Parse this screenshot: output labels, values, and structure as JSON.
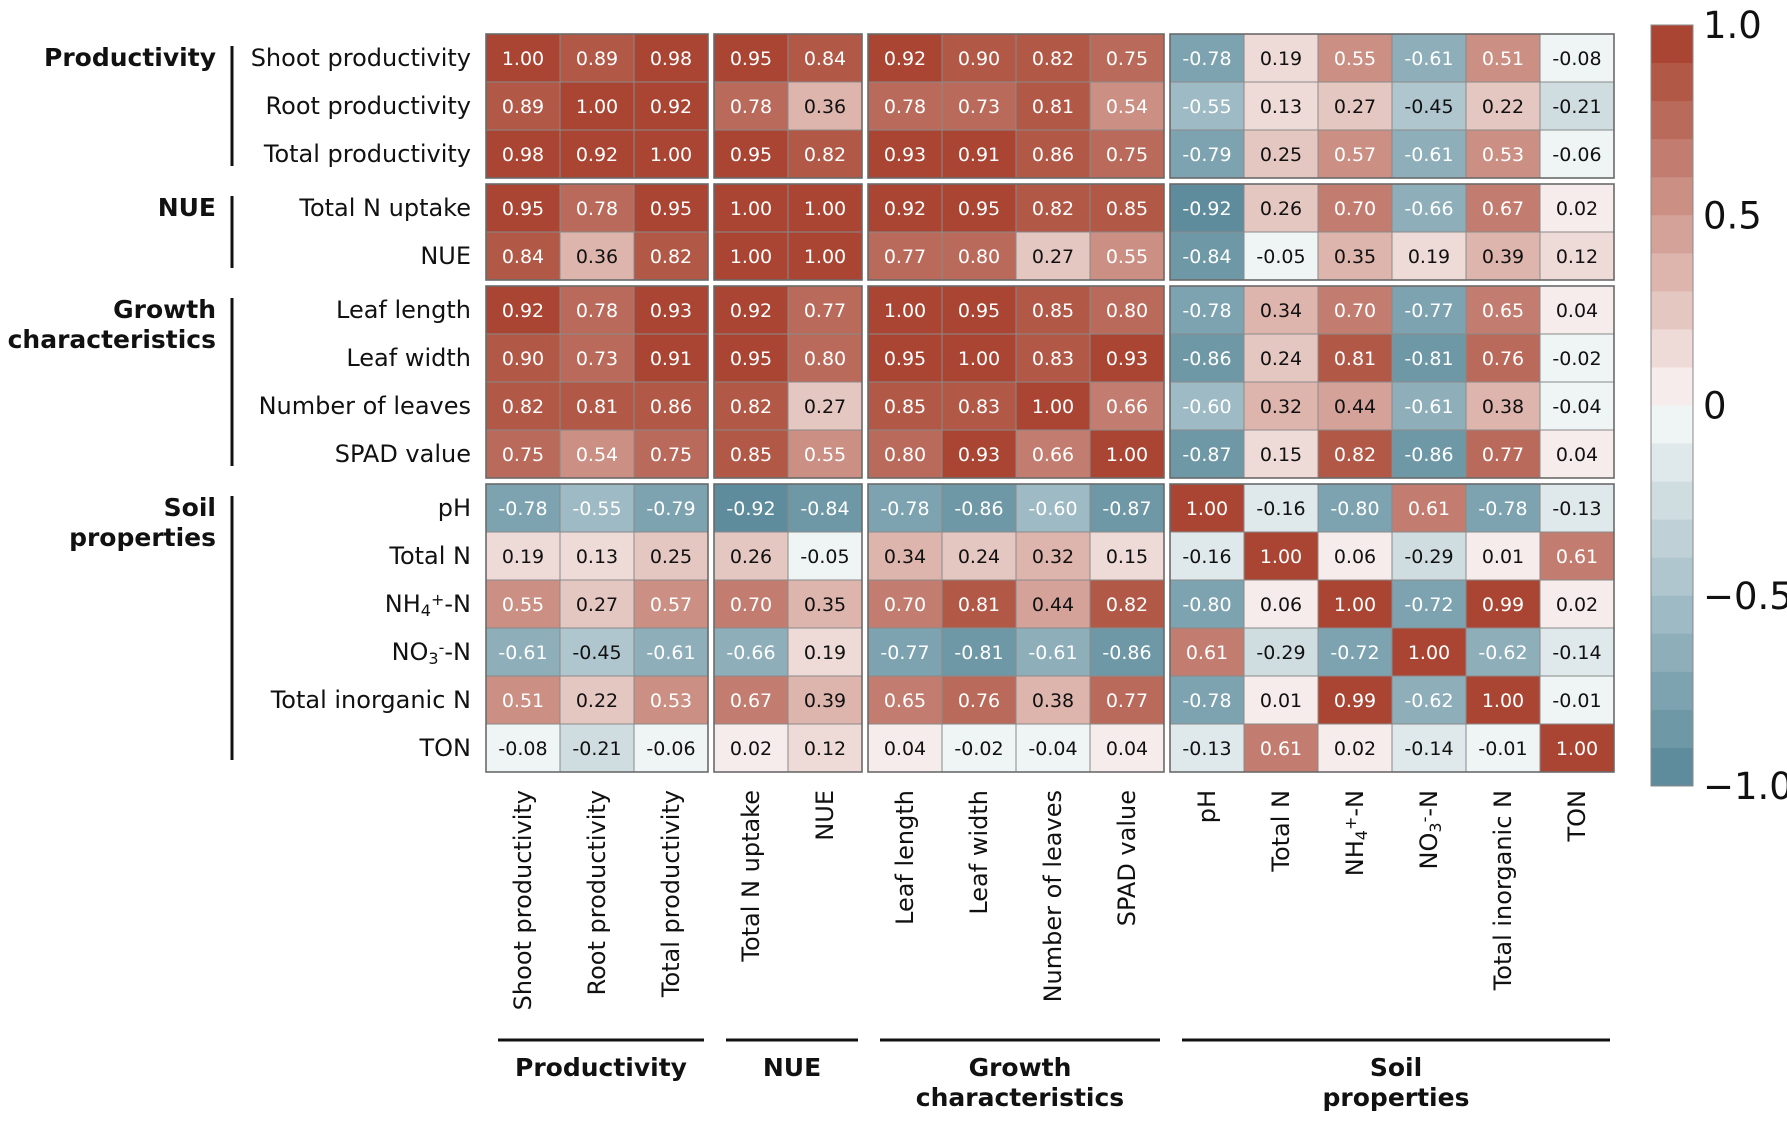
{
  "chart_data": {
    "type": "heatmap",
    "title": "",
    "variables": [
      {
        "label": "Shoot productivity",
        "parts": [
          {
            "t": "Shoot productivity"
          }
        ]
      },
      {
        "label": "Root productivity",
        "parts": [
          {
            "t": "Root productivity"
          }
        ]
      },
      {
        "label": "Total productivity",
        "parts": [
          {
            "t": "Total productivity"
          }
        ]
      },
      {
        "label": "Total N uptake",
        "parts": [
          {
            "t": "Total N uptake"
          }
        ]
      },
      {
        "label": "NUE",
        "parts": [
          {
            "t": "NUE"
          }
        ]
      },
      {
        "label": "Leaf length",
        "parts": [
          {
            "t": "Leaf length"
          }
        ]
      },
      {
        "label": "Leaf width",
        "parts": [
          {
            "t": "Leaf width"
          }
        ]
      },
      {
        "label": "Number of leaves",
        "parts": [
          {
            "t": "Number of leaves"
          }
        ]
      },
      {
        "label": "SPAD value",
        "parts": [
          {
            "t": "SPAD value"
          }
        ]
      },
      {
        "label": "pH",
        "parts": [
          {
            "t": "pH"
          }
        ]
      },
      {
        "label": "Total N",
        "parts": [
          {
            "t": "Total N"
          }
        ]
      },
      {
        "label": "NH4+-N",
        "parts": [
          {
            "t": "NH"
          },
          {
            "t": "4",
            "pos": "sub"
          },
          {
            "t": "+",
            "pos": "sup"
          },
          {
            "t": "-N"
          }
        ]
      },
      {
        "label": "NO3--N",
        "parts": [
          {
            "t": "NO"
          },
          {
            "t": "3",
            "pos": "sub"
          },
          {
            "t": "-",
            "pos": "sup"
          },
          {
            "t": "-N"
          }
        ]
      },
      {
        "label": "Total inorganic N",
        "parts": [
          {
            "t": "Total inorganic N"
          }
        ]
      },
      {
        "label": "TON",
        "parts": [
          {
            "t": "TON"
          }
        ]
      }
    ],
    "groups": [
      {
        "name": "Productivity",
        "lines": [
          "Productivity"
        ],
        "start": 0,
        "end": 2
      },
      {
        "name": "NUE",
        "lines": [
          "NUE"
        ],
        "start": 3,
        "end": 4
      },
      {
        "name": "Growth characteristics",
        "lines": [
          "Growth",
          "characteristics"
        ],
        "start": 5,
        "end": 8
      },
      {
        "name": "Soil properties",
        "lines": [
          "Soil",
          "properties"
        ],
        "start": 9,
        "end": 14
      }
    ],
    "values": [
      [
        1.0,
        0.89,
        0.98,
        0.95,
        0.84,
        0.92,
        0.9,
        0.82,
        0.75,
        -0.78,
        0.19,
        0.55,
        -0.61,
        0.51,
        -0.08
      ],
      [
        0.89,
        1.0,
        0.92,
        0.78,
        0.36,
        0.78,
        0.73,
        0.81,
        0.54,
        -0.55,
        0.13,
        0.27,
        -0.45,
        0.22,
        -0.21
      ],
      [
        0.98,
        0.92,
        1.0,
        0.95,
        0.82,
        0.93,
        0.91,
        0.86,
        0.75,
        -0.79,
        0.25,
        0.57,
        -0.61,
        0.53,
        -0.06
      ],
      [
        0.95,
        0.78,
        0.95,
        1.0,
        1.0,
        0.92,
        0.95,
        0.82,
        0.85,
        -0.92,
        0.26,
        0.7,
        -0.66,
        0.67,
        0.02
      ],
      [
        0.84,
        0.36,
        0.82,
        1.0,
        1.0,
        0.77,
        0.8,
        0.27,
        0.55,
        -0.84,
        -0.05,
        0.35,
        0.19,
        0.39,
        0.12
      ],
      [
        0.92,
        0.78,
        0.93,
        0.92,
        0.77,
        1.0,
        0.95,
        0.85,
        0.8,
        -0.78,
        0.34,
        0.7,
        -0.77,
        0.65,
        0.04
      ],
      [
        0.9,
        0.73,
        0.91,
        0.95,
        0.8,
        0.95,
        1.0,
        0.83,
        0.93,
        -0.86,
        0.24,
        0.81,
        -0.81,
        0.76,
        -0.02
      ],
      [
        0.82,
        0.81,
        0.86,
        0.82,
        0.27,
        0.85,
        0.83,
        1.0,
        0.66,
        -0.6,
        0.32,
        0.44,
        -0.61,
        0.38,
        -0.04
      ],
      [
        0.75,
        0.54,
        0.75,
        0.85,
        0.55,
        0.8,
        0.93,
        0.66,
        1.0,
        -0.87,
        0.15,
        0.82,
        -0.86,
        0.77,
        0.04
      ],
      [
        -0.78,
        -0.55,
        -0.79,
        -0.92,
        -0.84,
        -0.78,
        -0.86,
        -0.6,
        -0.87,
        1.0,
        -0.16,
        -0.8,
        0.61,
        -0.78,
        -0.13
      ],
      [
        0.19,
        0.13,
        0.25,
        0.26,
        -0.05,
        0.34,
        0.24,
        0.32,
        0.15,
        -0.16,
        1.0,
        0.06,
        -0.29,
        0.01,
        0.61
      ],
      [
        0.55,
        0.27,
        0.57,
        0.7,
        0.35,
        0.7,
        0.81,
        0.44,
        0.82,
        -0.8,
        0.06,
        1.0,
        -0.72,
        0.99,
        0.02
      ],
      [
        -0.61,
        -0.45,
        -0.61,
        -0.66,
        0.19,
        -0.77,
        -0.81,
        -0.61,
        -0.86,
        0.61,
        -0.29,
        -0.72,
        1.0,
        -0.62,
        -0.14
      ],
      [
        0.51,
        0.22,
        0.53,
        0.67,
        0.39,
        0.65,
        0.76,
        0.38,
        0.77,
        -0.78,
        0.01,
        0.99,
        -0.62,
        1.0,
        -0.01
      ],
      [
        -0.08,
        -0.21,
        -0.06,
        0.02,
        0.12,
        0.04,
        -0.02,
        -0.04,
        0.04,
        -0.13,
        0.61,
        0.02,
        -0.14,
        -0.01,
        1.0
      ]
    ],
    "color_range": [
      -1.0,
      1.0
    ],
    "colorbar": {
      "ticks": [
        1.0,
        0.5,
        0,
        -0.5,
        -1.0
      ],
      "tick_labels": [
        "1.0",
        "0.5",
        "0",
        "−0.5",
        "−1.0"
      ]
    },
    "colors": {
      "positive": "#a94532",
      "neutral": "#ffffff",
      "negative": "#5e8c9c"
    }
  }
}
